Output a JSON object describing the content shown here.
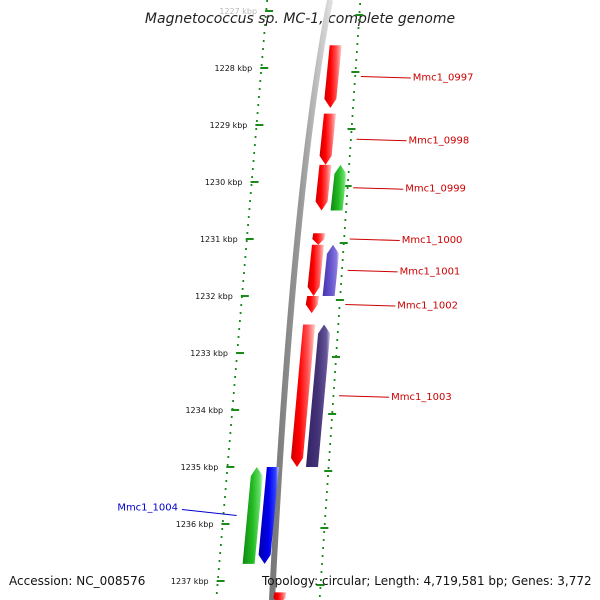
{
  "title": "Magnetococcus sp. MC-1, complete genome",
  "footer": {
    "accession": "Accession: NC_008576",
    "summary": "Topology: circular; Length: 4,719,581 bp; Genes: 3,772"
  },
  "ruler": {
    "unit": "kbp",
    "ticks": [
      {
        "kbp": 1227,
        "label": "1227 kbp"
      },
      {
        "kbp": 1228,
        "label": "1228 kbp"
      },
      {
        "kbp": 1229,
        "label": "1229 kbp"
      },
      {
        "kbp": 1230,
        "label": "1230 kbp"
      },
      {
        "kbp": 1231,
        "label": "1231 kbp"
      },
      {
        "kbp": 1232,
        "label": "1232 kbp"
      },
      {
        "kbp": 1233,
        "label": "1233 kbp"
      },
      {
        "kbp": 1234,
        "label": "1234 kbp"
      },
      {
        "kbp": 1235,
        "label": "1235 kbp"
      },
      {
        "kbp": 1236,
        "label": "1236 kbp"
      },
      {
        "kbp": 1237,
        "label": "1237 kbp"
      }
    ]
  },
  "colors": {
    "backbone": "#8a8a8a",
    "ruler_dots": "#1a8a1a",
    "gene_red": "#ff0000",
    "label_red": "#cc0000",
    "gene_green": "#22bb22",
    "gene_blue": "#0000ee",
    "gene_violet": "#6655cc",
    "gene_indigo": "#443377",
    "label_blue": "#0000cc"
  },
  "genes": [
    {
      "id": "Mmc1_0997",
      "start_kbp": 1227.6,
      "end_kbp": 1228.7,
      "strand": "-",
      "color": "#ff0000",
      "label": "Mmc1_0997",
      "label_color": "#cc0000"
    },
    {
      "id": "Mmc1_0998",
      "start_kbp": 1228.8,
      "end_kbp": 1229.7,
      "strand": "-",
      "color": "#ff0000",
      "label": "Mmc1_0998",
      "label_color": "#cc0000"
    },
    {
      "id": "Mmc1_0999",
      "start_kbp": 1229.7,
      "end_kbp": 1230.5,
      "strand": "-",
      "color": "#ff0000",
      "label": "Mmc1_0999",
      "label_color": "#cc0000"
    },
    {
      "id": "Mmc1_0999_b",
      "start_kbp": 1229.7,
      "end_kbp": 1230.5,
      "strand": "+",
      "color": "#22aa22",
      "label": "",
      "label_color": "#cc0000"
    },
    {
      "id": "Mmc1_1000",
      "start_kbp": 1230.9,
      "end_kbp": 1231.1,
      "strand": "-",
      "color": "#ff0000",
      "label": "Mmc1_1000",
      "label_color": "#cc0000"
    },
    {
      "id": "Mmc1_1001",
      "start_kbp": 1231.1,
      "end_kbp": 1232.0,
      "strand": "-",
      "color": "#ff0000",
      "label": "Mmc1_1001",
      "label_color": "#cc0000"
    },
    {
      "id": "Mmc1_1001_b",
      "start_kbp": 1231.1,
      "end_kbp": 1232.0,
      "strand": "+",
      "color": "#6655cc",
      "label": "",
      "label_color": "#cc0000"
    },
    {
      "id": "Mmc1_1002",
      "start_kbp": 1232.0,
      "end_kbp": 1232.3,
      "strand": "-",
      "color": "#ff0000",
      "label": "Mmc1_1002",
      "label_color": "#cc0000"
    },
    {
      "id": "Mmc1_1003",
      "start_kbp": 1232.5,
      "end_kbp": 1235.0,
      "strand": "-",
      "color": "#ff0000",
      "label": "Mmc1_1003",
      "label_color": "#cc0000"
    },
    {
      "id": "Mmc1_1003_b",
      "start_kbp": 1232.5,
      "end_kbp": 1235.0,
      "strand": "+",
      "color": "#443377",
      "label": "",
      "label_color": "#cc0000"
    },
    {
      "id": "Mmc1_1004",
      "start_kbp": 1235.0,
      "end_kbp": 1236.7,
      "strand": "+",
      "color": "#22bb22",
      "label": "Mmc1_1004",
      "label_color": "#0000cc"
    },
    {
      "id": "Mmc1_1004_b",
      "start_kbp": 1235.0,
      "end_kbp": 1236.7,
      "strand": "-",
      "color": "#0000ee",
      "label": "",
      "label_color": "#0000cc"
    },
    {
      "id": "Mmc1_1005",
      "start_kbp": 1237.2,
      "end_kbp": 1237.4,
      "strand": "-",
      "color": "#ff0000",
      "label": "",
      "label_color": "#cc0000"
    }
  ]
}
